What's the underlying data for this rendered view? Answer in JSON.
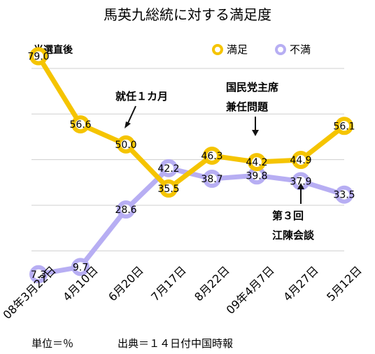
{
  "chart_data": {
    "type": "line",
    "title": "馬英九総統に対する満足度",
    "categories": [
      "08年3月22日",
      "4月10日",
      "6月20日",
      "7月17日",
      "8月22日",
      "09年4月7日",
      "4月27日",
      "5月12日"
    ],
    "series": [
      {
        "name": "満足",
        "color": "#f5c400",
        "values": [
          79.0,
          56.6,
          50.0,
          35.5,
          46.3,
          44.2,
          44.9,
          56.1
        ],
        "labels": [
          "79.0",
          "56.6",
          "50.0",
          "35.5",
          "46.3",
          "44.2",
          "44.9",
          "56.1"
        ]
      },
      {
        "name": "不満",
        "color": "#b7aef3",
        "values": [
          7.3,
          9.7,
          28.6,
          42.2,
          38.7,
          39.8,
          37.9,
          33.5
        ],
        "labels": [
          "7.3",
          "9.7",
          "28.6",
          "42.2",
          "38.7",
          "39.8",
          "37.9",
          "33.5"
        ]
      }
    ],
    "ylim": [
      0,
      90
    ],
    "grid": true,
    "legend": "top-right",
    "corner_label": "当選直後",
    "annotations": [
      {
        "text": "就任１カ月",
        "target": "6月20日"
      },
      {
        "text": "国民党主席兼任問題",
        "target": "09年4月7日"
      },
      {
        "text": "第３回江陳会談",
        "target": "4月27日"
      }
    ],
    "footer_left": "単位＝％",
    "footer_right": "出典＝１４日付中国時報"
  }
}
